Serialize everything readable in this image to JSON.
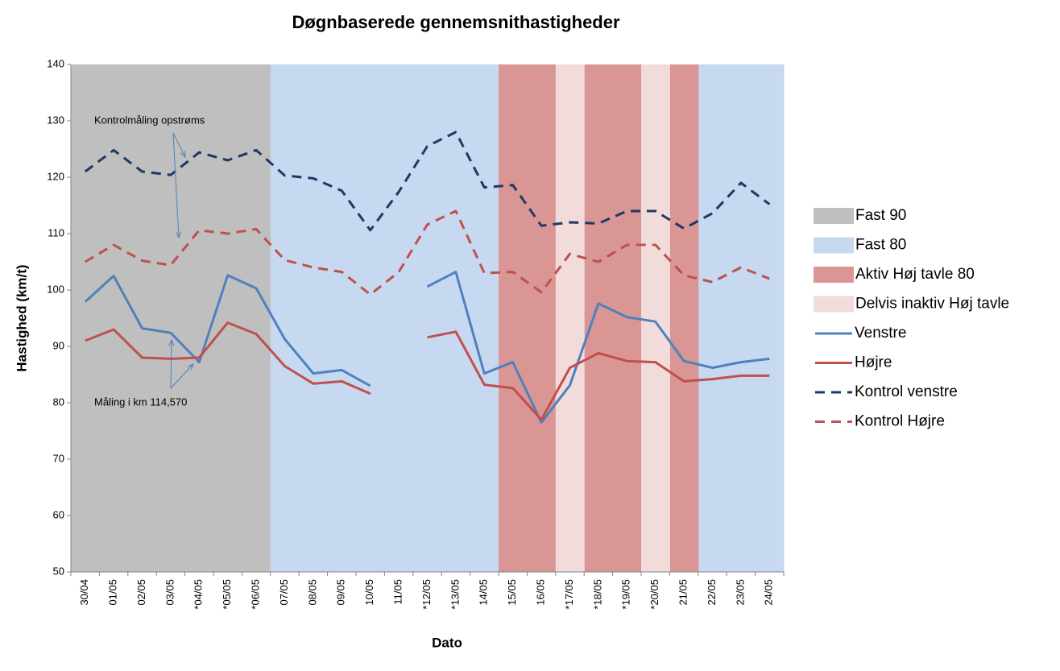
{
  "chart_data": {
    "type": "line",
    "title": "Døgnbaserede gennemsnithastigheder",
    "x_label": "Dato",
    "y_label": "Hastighed (km/t)",
    "categories": [
      "30/04",
      "01/05",
      "02/05",
      "03/05",
      "*04/05",
      "*05/05",
      "*06/05",
      "07/05",
      "08/05",
      "09/05",
      "10/05",
      "11/05",
      "*12/05",
      "*13/05",
      "14/05",
      "15/05",
      "16/05",
      "*17/05",
      "*18/05",
      "*19/05",
      "*20/05",
      "21/05",
      "22/05",
      "23/05",
      "24/05"
    ],
    "ylim": [
      50,
      140
    ],
    "yticks": [
      50,
      60,
      70,
      80,
      90,
      100,
      110,
      120,
      130,
      140
    ],
    "grid": false,
    "legend": "right",
    "annotations": [
      "Kontrolmåling opstrøms",
      "Måling i km 114,570"
    ],
    "series": [
      {
        "name": "Fast 90",
        "type": "bar",
        "color": "#bfbfbf",
        "values": [
          140,
          140,
          140,
          140,
          140,
          140,
          140,
          null,
          null,
          null,
          null,
          null,
          null,
          null,
          null,
          null,
          null,
          null,
          null,
          null,
          null,
          null,
          null,
          null,
          null
        ]
      },
      {
        "name": "Fast 80",
        "type": "bar",
        "color": "#c6d9f1",
        "values": [
          null,
          null,
          null,
          null,
          null,
          null,
          null,
          140,
          140,
          140,
          140,
          140,
          140,
          140,
          140,
          null,
          null,
          null,
          null,
          null,
          null,
          null,
          140,
          140,
          140
        ]
      },
      {
        "name": "Aktiv Høj tavle 80",
        "type": "bar",
        "color": "#d99694",
        "values": [
          null,
          null,
          null,
          null,
          null,
          null,
          null,
          null,
          null,
          null,
          null,
          null,
          null,
          null,
          null,
          140,
          140,
          null,
          140,
          140,
          null,
          140,
          null,
          null,
          null
        ]
      },
      {
        "name": "Delvis inaktiv Høj tavle",
        "type": "bar",
        "color": "#f2dcdb",
        "values": [
          null,
          null,
          null,
          null,
          null,
          null,
          null,
          null,
          null,
          null,
          null,
          null,
          null,
          null,
          null,
          null,
          null,
          140,
          null,
          null,
          140,
          null,
          null,
          null,
          null
        ]
      },
      {
        "name": "Venstre",
        "type": "line",
        "dash": false,
        "color": "#4f81bd",
        "values": [
          97.9,
          102.5,
          93.2,
          92.4,
          87.2,
          102.6,
          100.3,
          91.3,
          85.2,
          85.8,
          83,
          null,
          100.6,
          103.2,
          85.2,
          87.2,
          76.5,
          83.1,
          97.6,
          95.2,
          94.4,
          87.4,
          86.2,
          87.2,
          87.8
        ]
      },
      {
        "name": "Højre",
        "type": "line",
        "dash": false,
        "color": "#c0504d",
        "values": [
          91,
          93,
          88,
          87.8,
          88,
          94.2,
          92.2,
          86.5,
          83.4,
          83.8,
          81.6,
          null,
          91.6,
          92.6,
          83.2,
          82.6,
          77,
          86.2,
          88.8,
          87.4,
          87.2,
          83.8,
          84.2,
          84.8,
          84.8
        ]
      },
      {
        "name": "Kontrol venstre",
        "type": "line",
        "dash": true,
        "color": "#1f3864",
        "values": [
          121,
          124.8,
          121,
          120.4,
          124.4,
          123,
          124.8,
          120.3,
          119.8,
          117.6,
          110.6,
          117.4,
          125.5,
          128,
          118.2,
          118.6,
          111.4,
          112,
          111.8,
          114,
          114,
          110.9,
          113.6,
          119,
          115.2
        ]
      },
      {
        "name": "Kontrol Højre",
        "type": "line",
        "dash": true,
        "color": "#c0504d",
        "values": [
          105,
          108,
          105.2,
          104.4,
          110.6,
          110,
          110.8,
          105.3,
          104,
          103.2,
          99.2,
          103.2,
          111.6,
          114,
          103,
          103.2,
          99.6,
          106.4,
          105,
          108,
          108,
          102.6,
          101.4,
          104,
          102
        ]
      }
    ]
  }
}
